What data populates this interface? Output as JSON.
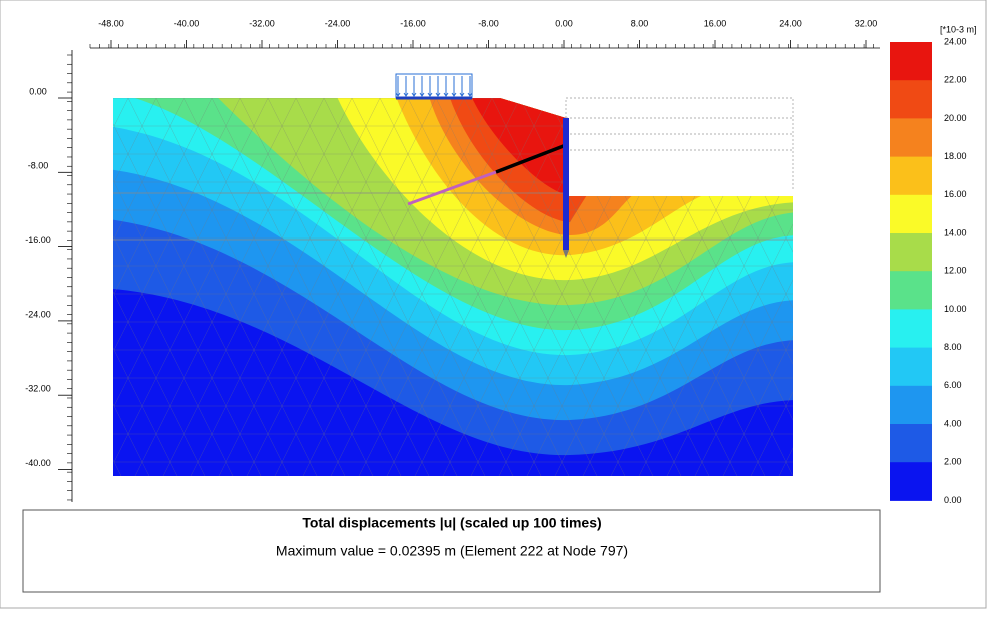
{
  "x_axis": {
    "ticks": [
      "-48.00",
      "-40.00",
      "-32.00",
      "-24.00",
      "-16.00",
      "-8.00",
      "0.00",
      "8.00",
      "16.00",
      "24.00",
      "32.00"
    ]
  },
  "y_axis": {
    "ticks": [
      "0.00",
      "-8.00",
      "-16.00",
      "-24.00",
      "-32.00",
      "-40.00"
    ]
  },
  "legend": {
    "unit": "[*10-3 m]",
    "labels": [
      "24.00",
      "22.00",
      "20.00",
      "18.00",
      "16.00",
      "14.00",
      "12.00",
      "10.00",
      "8.00",
      "6.00",
      "4.00",
      "2.00",
      "0.00"
    ]
  },
  "caption": {
    "title": "Total displacements |u| (scaled up 100 times)",
    "subtitle": "Maximum value = 0.02395 m (Element 222 at Node 797)"
  }
}
